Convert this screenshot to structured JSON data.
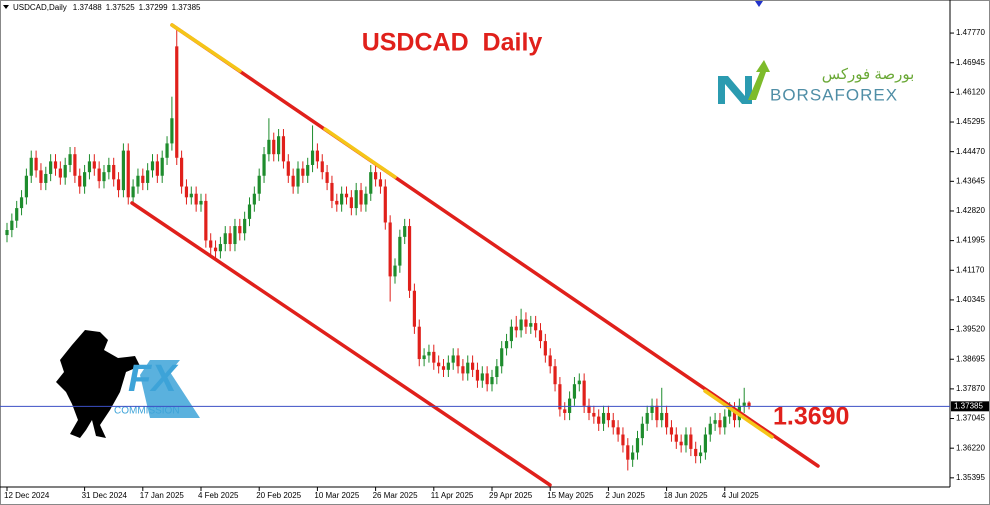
{
  "chart_data": {
    "type": "candlestick",
    "symbol": "USDCAD,Daily",
    "title": "USDCAD  Daily",
    "annotation": "1.3690",
    "up_color": "#1e8c2d",
    "down_color": "#e0201b",
    "price_line_color": "#3b4fc4",
    "ylim": [
      1.3514,
      1.4869
    ],
    "yticks": [
      {
        "value": 1.4777,
        "label": "1.47770"
      },
      1.46945,
      {
        "value": 1.4612,
        "label": "1.46120"
      },
      1.45295,
      {
        "value": 1.4447,
        "label": "1.44470"
      },
      1.43645,
      {
        "value": 1.4282,
        "label": "1.42820"
      },
      1.41995,
      {
        "value": 1.4117,
        "label": "1.41170"
      },
      1.40345,
      {
        "value": 1.3952,
        "label": "1.39520"
      },
      1.38695,
      {
        "value": 1.3787,
        "label": "1.37870"
      },
      1.37045,
      {
        "value": 1.3622,
        "label": "1.36220"
      },
      1.35395
    ],
    "categories": [
      "12 Dec 2024",
      null,
      null,
      null,
      null,
      null,
      null,
      null,
      null,
      null,
      null,
      null,
      null,
      null,
      null,
      null,
      "31 Dec 2024",
      null,
      null,
      null,
      null,
      null,
      null,
      null,
      null,
      null,
      null,
      null,
      "17 Jan 2025",
      null,
      null,
      null,
      null,
      null,
      null,
      null,
      null,
      null,
      null,
      null,
      "4 Feb 2025",
      null,
      null,
      null,
      null,
      null,
      null,
      null,
      null,
      null,
      null,
      null,
      "20 Feb 2025",
      null,
      null,
      null,
      null,
      null,
      null,
      null,
      null,
      null,
      null,
      null,
      "10 Mar 2025",
      null,
      null,
      null,
      null,
      null,
      null,
      null,
      null,
      null,
      null,
      null,
      "26 Mar 2025",
      null,
      null,
      null,
      null,
      null,
      null,
      null,
      null,
      null,
      null,
      null,
      "11 Apr 2025",
      null,
      null,
      null,
      null,
      null,
      null,
      null,
      null,
      null,
      null,
      null,
      "29 Apr 2025",
      null,
      null,
      null,
      null,
      null,
      null,
      null,
      null,
      null,
      null,
      null,
      "15 May 2025",
      null,
      null,
      null,
      null,
      null,
      null,
      null,
      null,
      null,
      null,
      null,
      "2 Jun 2025",
      null,
      null,
      null,
      null,
      null,
      null,
      null,
      null,
      null,
      null,
      null,
      "18 Jun 2025",
      null,
      null,
      null,
      null,
      null,
      null,
      null,
      null,
      null,
      null,
      null,
      "4 Jul 2025",
      null,
      null,
      null,
      null,
      null
    ],
    "open": [
      1.4215,
      1.4229,
      1.4255,
      1.429,
      1.432,
      1.438,
      1.443,
      1.4395,
      1.436,
      1.4385,
      1.442,
      1.44,
      1.4375,
      1.441,
      1.444,
      1.438,
      1.435,
      1.439,
      1.442,
      1.44,
      1.4365,
      1.439,
      1.441,
      1.437,
      1.434,
      1.445,
      1.432,
      1.435,
      1.438,
      1.436,
      1.4395,
      1.442,
      1.438,
      1.443,
      1.447,
      1.474,
      1.443,
      1.435,
      1.432,
      1.433,
      1.43,
      1.431,
      1.42,
      1.418,
      1.417,
      1.419,
      1.422,
      1.419,
      1.424,
      1.422,
      1.426,
      1.43,
      1.433,
      1.438,
      1.444,
      1.448,
      1.444,
      1.449,
      1.442,
      1.438,
      1.435,
      1.44,
      1.438,
      1.441,
      1.445,
      1.442,
      1.439,
      1.436,
      1.431,
      1.43,
      1.433,
      1.432,
      1.429,
      1.434,
      1.43,
      1.433,
      1.439,
      1.437,
      1.435,
      1.425,
      1.41,
      1.413,
      1.421,
      1.424,
      1.406,
      1.396,
      1.387,
      1.388,
      1.389,
      1.386,
      1.385,
      1.384,
      1.386,
      1.388,
      1.385,
      1.383,
      1.386,
      1.384,
      1.381,
      1.383,
      1.38,
      1.382,
      1.385,
      1.39,
      1.392,
      1.396,
      1.395,
      1.398,
      1.396,
      1.397,
      1.395,
      1.392,
      1.388,
      1.385,
      1.38,
      1.373,
      1.372,
      1.376,
      1.38,
      1.381,
      1.374,
      1.372,
      1.371,
      1.369,
      1.372,
      1.37,
      1.368,
      1.366,
      1.363,
      1.359,
      1.361,
      1.365,
      1.369,
      1.372,
      1.374,
      1.37,
      1.372,
      1.368,
      1.366,
      1.364,
      1.363,
      1.366,
      1.362,
      1.36,
      1.361,
      1.366,
      1.369,
      1.37,
      1.368,
      1.371,
      1.373,
      1.37,
      1.374,
      1.37488
    ],
    "high": [
      1.4249,
      1.4275,
      1.431,
      1.434,
      1.44,
      1.445,
      1.445,
      1.4415,
      1.4405,
      1.444,
      1.444,
      1.442,
      1.443,
      1.446,
      1.446,
      1.44,
      1.441,
      1.444,
      1.444,
      1.442,
      1.441,
      1.443,
      1.443,
      1.439,
      1.447,
      1.447,
      1.437,
      1.44,
      1.44,
      1.4415,
      1.444,
      1.444,
      1.445,
      1.449,
      1.46,
      1.4793,
      1.445,
      1.437,
      1.435,
      1.435,
      1.433,
      1.433,
      1.422,
      1.42,
      1.421,
      1.424,
      1.424,
      1.426,
      1.426,
      1.428,
      1.432,
      1.435,
      1.44,
      1.446,
      1.454,
      1.45,
      1.451,
      1.451,
      1.444,
      1.44,
      1.442,
      1.442,
      1.443,
      1.452,
      1.447,
      1.444,
      1.441,
      1.438,
      1.433,
      1.435,
      1.435,
      1.434,
      1.436,
      1.436,
      1.435,
      1.441,
      1.441,
      1.439,
      1.437,
      1.427,
      1.415,
      1.423,
      1.426,
      1.426,
      1.408,
      1.398,
      1.39,
      1.391,
      1.391,
      1.388,
      1.387,
      1.388,
      1.39,
      1.39,
      1.387,
      1.388,
      1.388,
      1.386,
      1.385,
      1.385,
      1.384,
      1.387,
      1.392,
      1.394,
      1.398,
      1.399,
      1.401,
      1.4,
      1.399,
      1.399,
      1.397,
      1.394,
      1.39,
      1.387,
      1.382,
      1.375,
      1.378,
      1.382,
      1.383,
      1.383,
      1.376,
      1.374,
      1.373,
      1.374,
      1.374,
      1.372,
      1.37,
      1.368,
      1.365,
      1.363,
      1.367,
      1.371,
      1.374,
      1.376,
      1.376,
      1.379,
      1.374,
      1.37,
      1.368,
      1.366,
      1.368,
      1.368,
      1.364,
      1.363,
      1.368,
      1.371,
      1.372,
      1.372,
      1.373,
      1.375,
      1.375,
      1.376,
      1.379,
      1.37525
    ],
    "low": [
      1.4195,
      1.4209,
      1.4235,
      1.427,
      1.43,
      1.436,
      1.4375,
      1.434,
      1.434,
      1.4365,
      1.438,
      1.4355,
      1.4355,
      1.439,
      1.436,
      1.433,
      1.433,
      1.437,
      1.438,
      1.4345,
      1.4345,
      1.437,
      1.435,
      1.432,
      1.432,
      1.43,
      1.43,
      1.433,
      1.434,
      1.434,
      1.4375,
      1.436,
      1.436,
      1.441,
      1.445,
      1.441,
      1.433,
      1.43,
      1.43,
      1.428,
      1.428,
      1.418,
      1.416,
      1.415,
      1.415,
      1.417,
      1.417,
      1.417,
      1.42,
      1.42,
      1.424,
      1.428,
      1.431,
      1.436,
      1.442,
      1.442,
      1.442,
      1.44,
      1.436,
      1.433,
      1.433,
      1.436,
      1.436,
      1.439,
      1.44,
      1.437,
      1.434,
      1.429,
      1.428,
      1.428,
      1.43,
      1.427,
      1.427,
      1.428,
      1.428,
      1.431,
      1.435,
      1.433,
      1.423,
      1.403,
      1.408,
      1.411,
      1.419,
      1.404,
      1.394,
      1.385,
      1.385,
      1.386,
      1.384,
      1.383,
      1.382,
      1.382,
      1.384,
      1.383,
      1.381,
      1.381,
      1.382,
      1.379,
      1.379,
      1.378,
      1.378,
      1.38,
      1.383,
      1.388,
      1.39,
      1.393,
      1.393,
      1.394,
      1.394,
      1.393,
      1.39,
      1.386,
      1.383,
      1.378,
      1.371,
      1.37,
      1.37,
      1.374,
      1.378,
      1.372,
      1.37,
      1.369,
      1.367,
      1.367,
      1.368,
      1.366,
      1.364,
      1.361,
      1.356,
      1.357,
      1.359,
      1.363,
      1.367,
      1.37,
      1.368,
      1.368,
      1.366,
      1.364,
      1.362,
      1.361,
      1.361,
      1.36,
      1.358,
      1.358,
      1.359,
      1.364,
      1.367,
      1.366,
      1.366,
      1.369,
      1.368,
      1.368,
      1.372,
      1.37299
    ],
    "close": [
      1.4229,
      1.4255,
      1.429,
      1.432,
      1.438,
      1.443,
      1.4395,
      1.436,
      1.4385,
      1.442,
      1.44,
      1.4375,
      1.441,
      1.444,
      1.438,
      1.435,
      1.439,
      1.442,
      1.44,
      1.4365,
      1.439,
      1.441,
      1.437,
      1.434,
      1.445,
      1.432,
      1.435,
      1.438,
      1.436,
      1.4395,
      1.442,
      1.438,
      1.443,
      1.447,
      1.454,
      1.443,
      1.435,
      1.432,
      1.433,
      1.43,
      1.431,
      1.42,
      1.418,
      1.417,
      1.419,
      1.422,
      1.419,
      1.424,
      1.422,
      1.426,
      1.43,
      1.433,
      1.438,
      1.444,
      1.448,
      1.444,
      1.449,
      1.442,
      1.438,
      1.435,
      1.44,
      1.438,
      1.441,
      1.445,
      1.442,
      1.439,
      1.436,
      1.431,
      1.43,
      1.433,
      1.432,
      1.429,
      1.434,
      1.43,
      1.433,
      1.439,
      1.437,
      1.435,
      1.425,
      1.41,
      1.413,
      1.421,
      1.424,
      1.406,
      1.396,
      1.387,
      1.388,
      1.389,
      1.386,
      1.385,
      1.384,
      1.386,
      1.388,
      1.385,
      1.383,
      1.386,
      1.384,
      1.381,
      1.383,
      1.38,
      1.382,
      1.385,
      1.39,
      1.392,
      1.396,
      1.395,
      1.398,
      1.396,
      1.397,
      1.395,
      1.392,
      1.388,
      1.385,
      1.38,
      1.373,
      1.372,
      1.376,
      1.38,
      1.381,
      1.374,
      1.372,
      1.371,
      1.369,
      1.372,
      1.37,
      1.368,
      1.366,
      1.363,
      1.359,
      1.361,
      1.365,
      1.369,
      1.372,
      1.374,
      1.37,
      1.372,
      1.368,
      1.366,
      1.364,
      1.363,
      1.366,
      1.362,
      1.36,
      1.361,
      1.366,
      1.369,
      1.37,
      1.368,
      1.371,
      1.373,
      1.37,
      1.374,
      1.37488,
      1.37385
    ]
  },
  "logos": {
    "borsa_arabic": "بورصة فوركس",
    "borsa_latin": "BORSAFOREX",
    "fx": "FX",
    "commission": "COMMISSION"
  }
}
